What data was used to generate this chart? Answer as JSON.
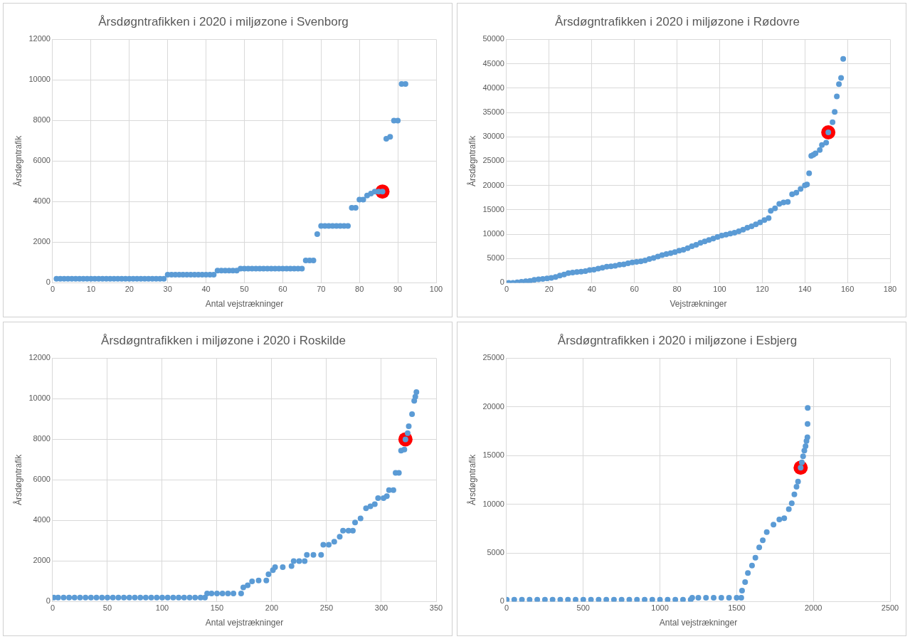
{
  "chart_data": [
    {
      "type": "scatter",
      "title": "Årsdøgntrafikken i 2020 i miljøzone i Svenborg",
      "xlabel": "Antal vejstrækninger",
      "ylabel": "Årsdøgntrafik",
      "xlim": [
        0,
        100
      ],
      "xticks": [
        0,
        10,
        20,
        30,
        40,
        50,
        60,
        70,
        80,
        90,
        100
      ],
      "ylim": [
        0,
        12000
      ],
      "yticks": [
        0,
        2000,
        4000,
        6000,
        8000,
        10000,
        12000
      ],
      "grid": true,
      "legend": false,
      "marker": "circle",
      "series": [
        {
          "color": "#5b9bd5",
          "x": [
            1,
            2,
            3,
            4,
            5,
            6,
            7,
            8,
            9,
            10,
            11,
            12,
            13,
            14,
            15,
            16,
            17,
            18,
            19,
            20,
            21,
            22,
            23,
            24,
            25,
            26,
            27,
            28,
            29,
            30,
            31,
            32,
            33,
            34,
            35,
            36,
            37,
            38,
            39,
            40,
            41,
            42,
            43,
            44,
            45,
            46,
            47,
            48,
            49,
            50,
            51,
            52,
            53,
            54,
            55,
            56,
            57,
            58,
            59,
            60,
            61,
            62,
            63,
            64,
            65,
            66,
            67,
            68,
            69,
            70,
            71,
            72,
            73,
            74,
            75,
            76,
            77,
            78,
            79,
            80,
            81,
            82,
            83,
            84,
            85,
            86,
            87,
            88,
            89,
            90,
            91,
            92
          ],
          "values": [
            200,
            200,
            200,
            200,
            200,
            200,
            200,
            200,
            200,
            200,
            200,
            200,
            200,
            200,
            200,
            200,
            200,
            200,
            200,
            200,
            200,
            200,
            200,
            200,
            200,
            200,
            200,
            200,
            200,
            400,
            400,
            400,
            400,
            400,
            400,
            400,
            400,
            400,
            400,
            400,
            400,
            400,
            600,
            600,
            600,
            600,
            600,
            600,
            700,
            700,
            700,
            700,
            700,
            700,
            700,
            700,
            700,
            700,
            700,
            700,
            700,
            700,
            700,
            700,
            700,
            1100,
            1100,
            1100,
            2400,
            2800,
            2800,
            2800,
            2800,
            2800,
            2800,
            2800,
            2800,
            3700,
            3700,
            4100,
            4100,
            4300,
            4400,
            4500,
            4500,
            4500,
            7100,
            7200,
            8000,
            8000,
            9800,
            9800
          ]
        },
        {
          "color": "#ff0000",
          "x": [
            86
          ],
          "values": [
            4500
          ]
        }
      ]
    },
    {
      "type": "scatter",
      "title": "Årsdøgntrafikken i 2020 i miljøzone i Rødovre",
      "xlabel": "Vejstrækninger",
      "ylabel": "Årsdøgntrafik",
      "xlim": [
        0,
        180
      ],
      "xticks": [
        0,
        20,
        40,
        60,
        80,
        100,
        120,
        140,
        160,
        180
      ],
      "ylim": [
        0,
        50000
      ],
      "yticks": [
        0,
        5000,
        10000,
        15000,
        20000,
        25000,
        30000,
        35000,
        40000,
        45000,
        50000
      ],
      "grid": true,
      "legend": false,
      "marker": "circle",
      "series": [
        {
          "color": "#5b9bd5",
          "x": [
            1,
            3,
            5,
            7,
            9,
            11,
            13,
            15,
            17,
            19,
            21,
            23,
            25,
            27,
            29,
            31,
            33,
            35,
            37,
            39,
            41,
            43,
            45,
            47,
            49,
            51,
            53,
            55,
            57,
            59,
            61,
            63,
            65,
            67,
            69,
            71,
            73,
            75,
            77,
            79,
            81,
            83,
            85,
            87,
            89,
            91,
            93,
            95,
            97,
            99,
            101,
            103,
            105,
            107,
            109,
            111,
            113,
            115,
            117,
            119,
            121,
            123,
            124,
            126,
            128,
            130,
            132,
            134,
            136,
            138,
            140,
            141,
            142,
            143,
            144,
            145,
            147,
            148,
            150,
            151,
            153,
            154,
            155,
            156,
            157,
            158
          ],
          "values": [
            0,
            0,
            100,
            200,
            300,
            400,
            600,
            700,
            800,
            900,
            1000,
            1200,
            1500,
            1700,
            2000,
            2100,
            2200,
            2300,
            2400,
            2600,
            2700,
            2900,
            3100,
            3300,
            3400,
            3500,
            3700,
            3800,
            4000,
            4200,
            4300,
            4400,
            4600,
            4900,
            5100,
            5400,
            5700,
            5900,
            6100,
            6300,
            6600,
            6800,
            7100,
            7500,
            7800,
            8200,
            8500,
            8800,
            9100,
            9400,
            9700,
            9900,
            10100,
            10300,
            10600,
            10900,
            11300,
            11600,
            12000,
            12400,
            12900,
            13300,
            14800,
            15300,
            16200,
            16500,
            16600,
            18200,
            18500,
            19300,
            20000,
            20200,
            22500,
            26100,
            26300,
            26600,
            27300,
            28300,
            28800,
            30900,
            33000,
            35100,
            38300,
            40800,
            42100,
            46000
          ]
        },
        {
          "color": "#ff0000",
          "x": [
            151
          ],
          "values": [
            30900
          ]
        }
      ]
    },
    {
      "type": "scatter",
      "title": "Årsdøgntrafikken i miljøzone i 2020 i Roskilde",
      "xlabel": "Antal vejstrækninger",
      "ylabel": "Årsdøgntrafik",
      "xlim": [
        0,
        350
      ],
      "xticks": [
        0,
        50,
        100,
        150,
        200,
        250,
        300,
        350
      ],
      "ylim": [
        0,
        12000
      ],
      "yticks": [
        0,
        2000,
        4000,
        6000,
        8000,
        10000,
        12000
      ],
      "grid": true,
      "legend": false,
      "marker": "circle",
      "series": [
        {
          "color": "#5b9bd5",
          "x": [
            1,
            5,
            10,
            15,
            20,
            25,
            30,
            35,
            40,
            45,
            50,
            55,
            60,
            65,
            70,
            75,
            80,
            85,
            90,
            95,
            100,
            105,
            110,
            115,
            120,
            125,
            130,
            135,
            139,
            141,
            145,
            150,
            155,
            160,
            165,
            172,
            174,
            178,
            182,
            188,
            195,
            197,
            201,
            203,
            210,
            218,
            220,
            225,
            230,
            232,
            238,
            245,
            247,
            252,
            257,
            262,
            265,
            270,
            274,
            276,
            281,
            286,
            290,
            294,
            297,
            302,
            305,
            307,
            311,
            313,
            316,
            318,
            321,
            322,
            324,
            325,
            328,
            330,
            331,
            332
          ],
          "values": [
            200,
            200,
            200,
            200,
            200,
            200,
            200,
            200,
            200,
            200,
            200,
            200,
            200,
            200,
            200,
            200,
            200,
            200,
            200,
            200,
            200,
            200,
            200,
            200,
            200,
            200,
            200,
            200,
            200,
            400,
            400,
            400,
            400,
            400,
            400,
            400,
            700,
            800,
            1000,
            1040,
            1040,
            1350,
            1550,
            1700,
            1700,
            1750,
            2000,
            2000,
            2000,
            2300,
            2300,
            2300,
            2800,
            2800,
            2950,
            3200,
            3500,
            3500,
            3500,
            3900,
            4100,
            4600,
            4700,
            4800,
            5100,
            5100,
            5200,
            5500,
            5500,
            6350,
            6350,
            7440,
            7500,
            8000,
            8300,
            8650,
            9240,
            9900,
            10100,
            10330
          ]
        },
        {
          "color": "#ff0000",
          "x": [
            322
          ],
          "values": [
            8000
          ]
        }
      ]
    },
    {
      "type": "scatter",
      "title": "Årsdøgntrafikken i 2020 i miljøzone i Esbjerg",
      "xlabel": "Antal vejstrækninger",
      "ylabel": "Årsdøgntrafik",
      "xlim": [
        0,
        2500
      ],
      "xticks": [
        0,
        500,
        1000,
        1500,
        2000,
        2500
      ],
      "ylim": [
        0,
        25000
      ],
      "yticks": [
        0,
        5000,
        10000,
        15000,
        20000,
        25000
      ],
      "grid": true,
      "legend": false,
      "marker": "circle",
      "series": [
        {
          "color": "#5b9bd5",
          "x": [
            1,
            50,
            100,
            150,
            200,
            250,
            300,
            350,
            400,
            450,
            500,
            550,
            600,
            650,
            700,
            750,
            800,
            850,
            900,
            950,
            1000,
            1050,
            1100,
            1150,
            1200,
            1210,
            1250,
            1300,
            1350,
            1400,
            1450,
            1500,
            1530,
            1535,
            1555,
            1573,
            1600,
            1622,
            1647,
            1670,
            1696,
            1740,
            1778,
            1810,
            1840,
            1859,
            1876,
            1890,
            1900,
            1917,
            1925,
            1933,
            1941,
            1949,
            1955,
            1961,
            1962,
            1963
          ],
          "values": [
            200,
            200,
            200,
            200,
            200,
            200,
            200,
            200,
            200,
            200,
            200,
            200,
            200,
            200,
            200,
            200,
            200,
            200,
            200,
            200,
            200,
            200,
            200,
            200,
            200,
            400,
            400,
            400,
            400,
            400,
            400,
            400,
            400,
            1120,
            2000,
            2940,
            3700,
            4500,
            5570,
            6300,
            7130,
            7900,
            8440,
            8570,
            9500,
            10100,
            11020,
            11800,
            12320,
            13750,
            14300,
            14930,
            15500,
            15970,
            16500,
            16880,
            18250,
            19900
          ]
        },
        {
          "color": "#ff0000",
          "x": [
            1917
          ],
          "values": [
            13750
          ]
        }
      ]
    }
  ]
}
